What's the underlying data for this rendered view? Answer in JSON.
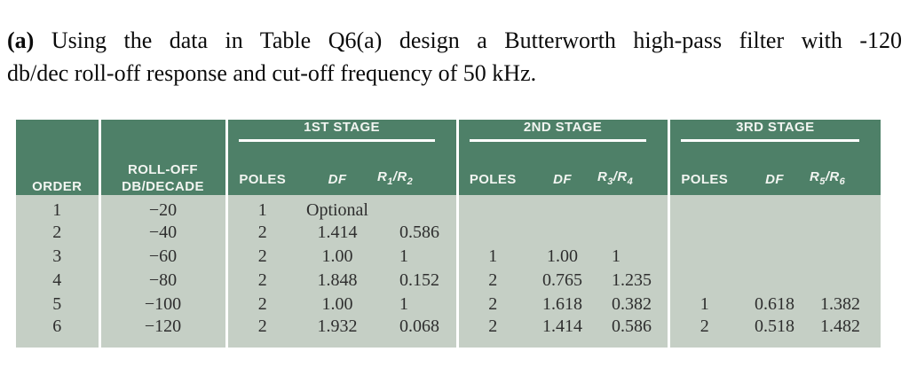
{
  "question": {
    "label": "(a)",
    "line1": "Using the data in Table Q6(a) design a Butterworth high-pass filter with -120",
    "line2": "db/dec roll-off response and cut-off frequency of 50 kHz."
  },
  "colors": {
    "header_bg": "#4e8068",
    "body_bg": "#c5cfc5",
    "header_text": "#f2f5f1",
    "body_text": "#2e2e2e",
    "rule_color": "#ffffff"
  },
  "table": {
    "columns": {
      "order": "ORDER",
      "rolloff_line1": "ROLL-OFF",
      "rolloff_line2": "DB/DECADE"
    },
    "stages": [
      {
        "title": "1ST STAGE",
        "poles": "POLES",
        "df": "DF",
        "ratio": {
          "num": "R",
          "num_sub": "1",
          "sep": "/",
          "den": "R",
          "den_sub": "2"
        }
      },
      {
        "title": "2ND STAGE",
        "poles": "POLES",
        "df": "DF",
        "ratio": {
          "num": "R",
          "num_sub": "3",
          "sep": "/",
          "den": "R",
          "den_sub": "4"
        }
      },
      {
        "title": "3RD STAGE",
        "poles": "POLES",
        "df": "DF",
        "ratio": {
          "num": "R",
          "num_sub": "5",
          "sep": "/",
          "den": "R",
          "den_sub": "6"
        }
      }
    ],
    "rows": [
      [
        "1",
        "−20",
        "1",
        "Optional",
        "",
        "",
        "",
        "",
        "",
        "",
        ""
      ],
      [
        "2",
        "−40",
        "2",
        "1.414",
        "0.586",
        "",
        "",
        "",
        "",
        "",
        ""
      ],
      [
        "3",
        "−60",
        "2",
        "1.00",
        "1",
        "1",
        "1.00",
        "1",
        "",
        "",
        ""
      ],
      [
        "4",
        "−80",
        "2",
        "1.848",
        "0.152",
        "2",
        "0.765",
        "1.235",
        "",
        "",
        ""
      ],
      [
        "5",
        "−100",
        "2",
        "1.00",
        "1",
        "2",
        "1.618",
        "0.382",
        "1",
        "0.618",
        "1.382"
      ],
      [
        "6",
        "−120",
        "2",
        "1.932",
        "0.068",
        "2",
        "1.414",
        "0.586",
        "2",
        "0.518",
        "1.482"
      ]
    ]
  }
}
